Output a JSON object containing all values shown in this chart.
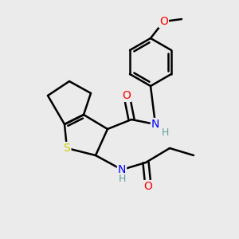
{
  "background_color": "#ebebeb",
  "bond_color": "#000000",
  "atom_colors": {
    "O": "#ff0000",
    "N": "#0000ff",
    "S": "#cccc00",
    "H": "#5f9ea0",
    "C": "#000000"
  },
  "figsize": [
    3.0,
    3.0
  ],
  "dpi": 100
}
